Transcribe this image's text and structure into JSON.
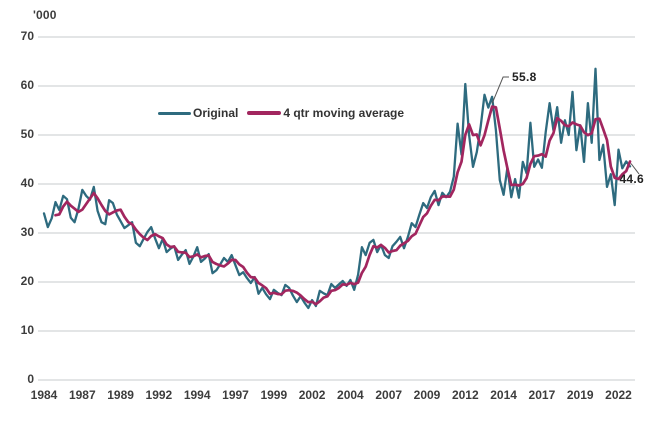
{
  "chart_data": {
    "type": "line",
    "title": "",
    "unit_label": "'000",
    "frequency": "quarterly",
    "x_tick_labels": [
      "1984",
      "1987",
      "1989",
      "1992",
      "1994",
      "1997",
      "1999",
      "2002",
      "2004",
      "2007",
      "2009",
      "2012",
      "2014",
      "2017",
      "2019",
      "2022"
    ],
    "y_ticks": [
      0,
      10,
      20,
      30,
      40,
      50,
      60,
      70
    ],
    "ylim": [
      0,
      70
    ],
    "grid": "horizontal-only",
    "legend_position": "inside-top-left",
    "series": [
      {
        "name": "Original",
        "color": "#2E6B7F",
        "values": [
          34.0,
          31.2,
          33.0,
          36.3,
          34.7,
          37.6,
          36.9,
          33.1,
          32.2,
          35.0,
          38.8,
          37.6,
          36.8,
          39.4,
          34.5,
          32.2,
          31.8,
          36.7,
          36.1,
          33.8,
          32.4,
          31.0,
          31.6,
          32.2,
          28.0,
          27.3,
          28.8,
          30.2,
          31.2,
          28.9,
          26.9,
          28.8,
          26.1,
          26.8,
          27.3,
          24.5,
          25.6,
          26.5,
          23.7,
          25.2,
          27.1,
          24.1,
          24.8,
          25.7,
          21.8,
          22.4,
          23.6,
          24.9,
          24.1,
          25.5,
          23.4,
          21.4,
          22.0,
          20.8,
          19.8,
          21.0,
          17.6,
          18.8,
          17.5,
          16.5,
          18.4,
          17.8,
          17.3,
          19.4,
          18.8,
          17.2,
          15.9,
          17.1,
          15.8,
          14.7,
          16.3,
          15.1,
          18.2,
          17.7,
          17.3,
          19.6,
          18.8,
          19.5,
          20.2,
          19.2,
          20.4,
          18.4,
          21.5,
          27.1,
          25.5,
          28.0,
          28.6,
          26.1,
          27.6,
          25.5,
          24.9,
          27.3,
          28.2,
          29.2,
          26.9,
          29.2,
          32.0,
          31.2,
          33.7,
          36.1,
          35.1,
          37.3,
          38.6,
          35.7,
          38.2,
          37.3,
          38.4,
          41.5,
          52.3,
          46.0,
          60.4,
          50.0,
          43.5,
          46.5,
          51.6,
          58.2,
          55.6,
          57.8,
          51.0,
          40.8,
          37.8,
          43.3,
          37.3,
          41.0,
          37.2,
          44.5,
          42.2,
          52.5,
          43.5,
          45.0,
          43.3,
          50.6,
          56.5,
          51.0,
          55.7,
          48.4,
          53.0,
          50.0,
          58.8,
          46.9,
          52.0,
          44.5,
          56.5,
          48.4,
          63.5,
          44.9,
          48.0,
          39.4,
          42.0,
          35.7,
          47.0,
          43.2,
          44.6,
          43.6
        ]
      },
      {
        "name": "4 qtr moving average",
        "color": "#A2265F",
        "derived": "trailing mean of previous 4 quarters of Original (starts at 4th quarter); peak 55.8, final 44.6"
      }
    ],
    "annotations": [
      {
        "label": "55.8",
        "series": "4 qtr moving average",
        "at_index": 117
      },
      {
        "label": "44.6",
        "series": "4 qtr moving average",
        "at_index": 153
      }
    ]
  }
}
